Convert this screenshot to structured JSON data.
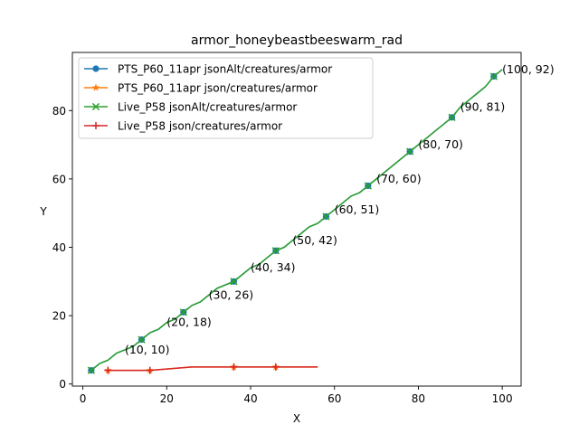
{
  "chart_data": {
    "type": "line",
    "title": "armor_honeybeastbeeswarm_rad",
    "xlabel": "X",
    "ylabel": "Y",
    "xlim": [
      -2.5,
      104.5
    ],
    "ylim": [
      -0.6,
      97
    ],
    "xticks": [
      0,
      20,
      40,
      60,
      80,
      100
    ],
    "yticks": [
      0,
      20,
      40,
      60,
      80
    ],
    "grid": false,
    "legend_position": "upper-left",
    "series": [
      {
        "name": "PTS_P60_11apr jsonAlt/creatures/armor",
        "color": "#1f77b4",
        "marker": "circle",
        "points": [
          [
            2,
            4
          ],
          [
            4,
            6
          ],
          [
            6,
            7
          ],
          [
            8,
            9
          ],
          [
            10,
            10
          ],
          [
            12,
            11
          ],
          [
            14,
            13
          ],
          [
            16,
            15
          ],
          [
            18,
            16
          ],
          [
            20,
            18
          ],
          [
            22,
            19
          ],
          [
            24,
            21
          ],
          [
            26,
            23
          ],
          [
            28,
            24
          ],
          [
            30,
            26
          ],
          [
            32,
            28
          ],
          [
            34,
            29
          ],
          [
            36,
            30
          ],
          [
            38,
            32
          ],
          [
            40,
            34
          ],
          [
            42,
            35
          ],
          [
            44,
            37
          ],
          [
            46,
            39
          ],
          [
            48,
            40
          ],
          [
            50,
            42
          ],
          [
            52,
            44
          ],
          [
            54,
            46
          ],
          [
            56,
            47
          ],
          [
            58,
            49
          ],
          [
            60,
            51
          ],
          [
            62,
            53
          ],
          [
            64,
            55
          ],
          [
            66,
            56
          ],
          [
            68,
            58
          ],
          [
            70,
            60
          ],
          [
            72,
            62
          ],
          [
            74,
            64
          ],
          [
            76,
            66
          ],
          [
            78,
            68
          ],
          [
            80,
            70
          ],
          [
            82,
            72
          ],
          [
            84,
            74
          ],
          [
            86,
            76
          ],
          [
            88,
            78
          ],
          [
            90,
            81
          ],
          [
            92,
            83
          ],
          [
            94,
            85
          ],
          [
            96,
            87
          ],
          [
            98,
            90
          ],
          [
            100,
            92
          ]
        ],
        "marker_x": [
          2,
          14,
          24,
          36,
          46,
          58,
          68,
          78,
          88,
          98
        ]
      },
      {
        "name": "PTS_P60_11apr json/creatures/armor",
        "color": "#ff7f0e",
        "marker": "star",
        "points": [
          [
            6,
            4
          ],
          [
            16,
            4
          ],
          [
            26,
            5
          ],
          [
            36,
            5
          ],
          [
            46,
            5
          ],
          [
            56,
            5
          ]
        ],
        "marker_x": [
          6,
          16,
          36,
          46
        ]
      },
      {
        "name": "Live_P58 jsonAlt/creatures/armor",
        "color": "#2ca02c",
        "marker": "x",
        "points": [
          [
            2,
            4
          ],
          [
            4,
            6
          ],
          [
            6,
            7
          ],
          [
            8,
            9
          ],
          [
            10,
            10
          ],
          [
            12,
            11
          ],
          [
            14,
            13
          ],
          [
            16,
            15
          ],
          [
            18,
            16
          ],
          [
            20,
            18
          ],
          [
            22,
            19
          ],
          [
            24,
            21
          ],
          [
            26,
            23
          ],
          [
            28,
            24
          ],
          [
            30,
            26
          ],
          [
            32,
            28
          ],
          [
            34,
            29
          ],
          [
            36,
            30
          ],
          [
            38,
            32
          ],
          [
            40,
            34
          ],
          [
            42,
            35
          ],
          [
            44,
            37
          ],
          [
            46,
            39
          ],
          [
            48,
            40
          ],
          [
            50,
            42
          ],
          [
            52,
            44
          ],
          [
            54,
            46
          ],
          [
            56,
            47
          ],
          [
            58,
            49
          ],
          [
            60,
            51
          ],
          [
            62,
            53
          ],
          [
            64,
            55
          ],
          [
            66,
            56
          ],
          [
            68,
            58
          ],
          [
            70,
            60
          ],
          [
            72,
            62
          ],
          [
            74,
            64
          ],
          [
            76,
            66
          ],
          [
            78,
            68
          ],
          [
            80,
            70
          ],
          [
            82,
            72
          ],
          [
            84,
            74
          ],
          [
            86,
            76
          ],
          [
            88,
            78
          ],
          [
            90,
            81
          ],
          [
            92,
            83
          ],
          [
            94,
            85
          ],
          [
            96,
            87
          ],
          [
            98,
            90
          ],
          [
            100,
            92
          ]
        ],
        "marker_x": [
          2,
          14,
          24,
          36,
          46,
          58,
          68,
          78,
          88,
          98
        ]
      },
      {
        "name": "Live_P58 json/creatures/armor",
        "color": "#d62728",
        "marker": "plus",
        "points": [
          [
            6,
            4
          ],
          [
            16,
            4
          ],
          [
            26,
            5
          ],
          [
            36,
            5
          ],
          [
            46,
            5
          ],
          [
            56,
            5
          ]
        ],
        "marker_x": [
          6,
          16,
          36,
          46
        ]
      }
    ],
    "annotations": [
      {
        "text": "(10, 10)",
        "x": 10,
        "y": 10
      },
      {
        "text": "(20, 18)",
        "x": 20,
        "y": 18
      },
      {
        "text": "(30, 26)",
        "x": 30,
        "y": 26
      },
      {
        "text": "(40, 34)",
        "x": 40,
        "y": 34
      },
      {
        "text": "(50, 42)",
        "x": 50,
        "y": 42
      },
      {
        "text": "(60, 51)",
        "x": 60,
        "y": 51
      },
      {
        "text": "(70, 60)",
        "x": 70,
        "y": 60
      },
      {
        "text": "(80, 70)",
        "x": 80,
        "y": 70
      },
      {
        "text": "(90, 81)",
        "x": 90,
        "y": 81
      },
      {
        "text": "(100, 92)",
        "x": 100,
        "y": 92
      }
    ]
  }
}
